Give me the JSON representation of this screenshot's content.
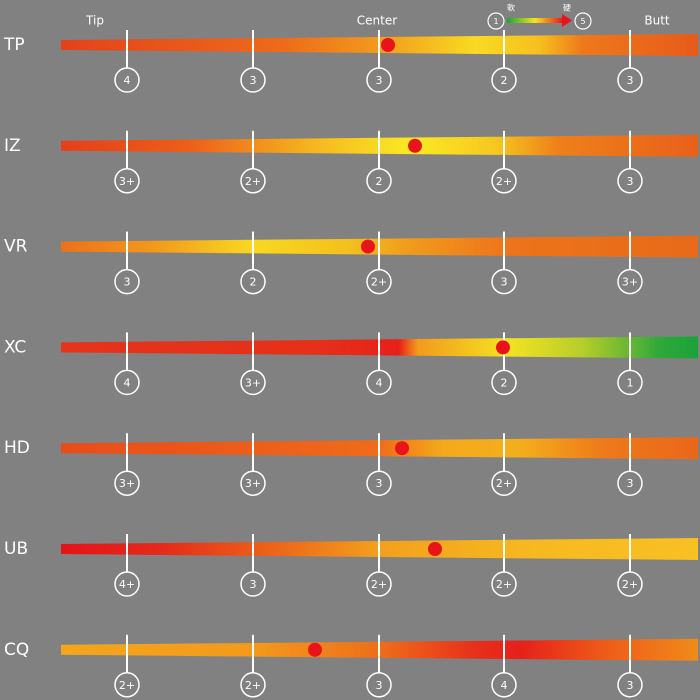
{
  "header": {
    "tip": "Tip",
    "center": "Center",
    "butt": "Butt"
  },
  "legend": {
    "min": "1",
    "soft": "軟",
    "hard": "硬",
    "max": "5"
  },
  "rows": [
    {
      "label": "TP",
      "ratings": [
        "4",
        "3",
        "3",
        "2",
        "3"
      ]
    },
    {
      "label": "IZ",
      "ratings": [
        "3+",
        "2+",
        "2",
        "2+",
        "3"
      ]
    },
    {
      "label": "VR",
      "ratings": [
        "3",
        "2",
        "2+",
        "3",
        "3+"
      ]
    },
    {
      "label": "XC",
      "ratings": [
        "4",
        "3+",
        "4",
        "2",
        "1"
      ]
    },
    {
      "label": "HD",
      "ratings": [
        "3+",
        "3+",
        "3",
        "2+",
        "3"
      ]
    },
    {
      "label": "UB",
      "ratings": [
        "4+",
        "3",
        "2+",
        "2+",
        "2+"
      ]
    },
    {
      "label": "CQ",
      "ratings": [
        "2+",
        "2+",
        "3",
        "4",
        "3"
      ]
    }
  ]
}
